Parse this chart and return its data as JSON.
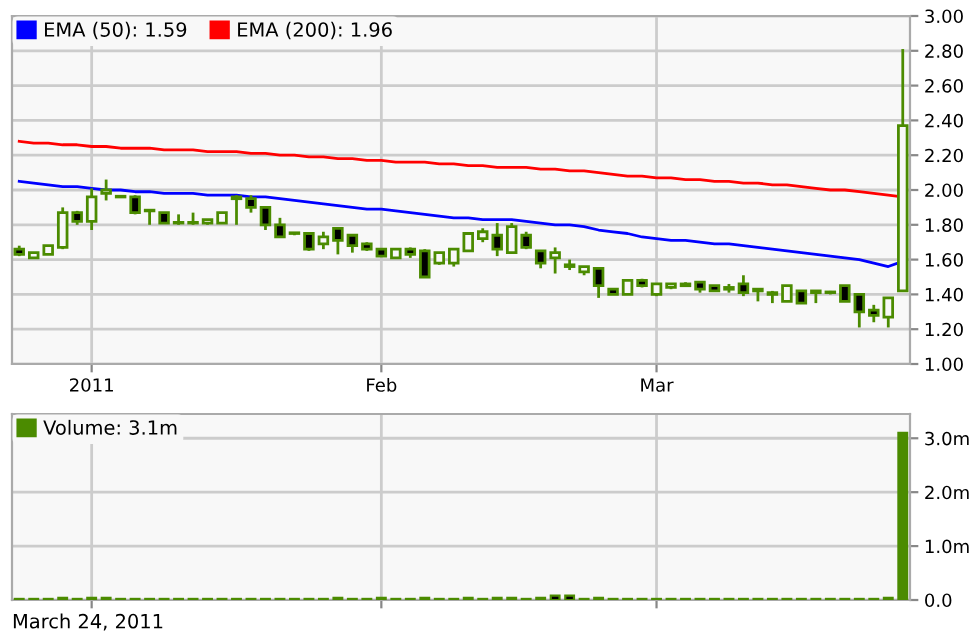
{
  "chart_data": [
    {
      "type": "candlestick",
      "categories": [
        null,
        null,
        null,
        null,
        null,
        "2011",
        null,
        null,
        null,
        null,
        null,
        null,
        null,
        null,
        null,
        null,
        null,
        null,
        null,
        null,
        null,
        null,
        null,
        null,
        null,
        "Feb",
        null,
        null,
        null,
        null,
        null,
        null,
        null,
        null,
        null,
        null,
        null,
        null,
        null,
        null,
        null,
        null,
        null,
        null,
        "Mar",
        null,
        null,
        null,
        null,
        null,
        null,
        null,
        null,
        null,
        null,
        null,
        null,
        null,
        null,
        null,
        null,
        null
      ],
      "color": "#4b8b00",
      "ohlc": [
        [
          1.66,
          1.68,
          1.62,
          1.63
        ],
        [
          1.61,
          1.64,
          1.61,
          1.64
        ],
        [
          1.63,
          1.68,
          1.63,
          1.68
        ],
        [
          1.67,
          1.9,
          1.66,
          1.87
        ],
        [
          1.87,
          1.88,
          1.8,
          1.82
        ],
        [
          1.82,
          2.01,
          1.77,
          1.96
        ],
        [
          1.98,
          2.06,
          1.94,
          2.0
        ],
        [
          1.96,
          1.97,
          1.96,
          1.96
        ],
        [
          1.96,
          1.97,
          1.86,
          1.87
        ],
        [
          1.88,
          1.89,
          1.8,
          1.88
        ],
        [
          1.87,
          1.87,
          1.81,
          1.81
        ],
        [
          1.81,
          1.86,
          1.8,
          1.81
        ],
        [
          1.81,
          1.87,
          1.8,
          1.81
        ],
        [
          1.81,
          1.83,
          1.8,
          1.83
        ],
        [
          1.81,
          1.87,
          1.81,
          1.87
        ],
        [
          1.95,
          1.97,
          1.8,
          1.96
        ],
        [
          1.95,
          1.97,
          1.87,
          1.9
        ],
        [
          1.9,
          1.9,
          1.77,
          1.8
        ],
        [
          1.8,
          1.84,
          1.73,
          1.73
        ],
        [
          1.75,
          1.75,
          1.74,
          1.75
        ],
        [
          1.75,
          1.75,
          1.65,
          1.66
        ],
        [
          1.69,
          1.76,
          1.66,
          1.73
        ],
        [
          1.78,
          1.78,
          1.63,
          1.71
        ],
        [
          1.74,
          1.74,
          1.64,
          1.68
        ],
        [
          1.69,
          1.7,
          1.65,
          1.66
        ],
        [
          1.66,
          1.66,
          1.62,
          1.62
        ],
        [
          1.61,
          1.66,
          1.61,
          1.66
        ],
        [
          1.66,
          1.67,
          1.61,
          1.63
        ],
        [
          1.65,
          1.66,
          1.5,
          1.5
        ],
        [
          1.58,
          1.64,
          1.57,
          1.64
        ],
        [
          1.58,
          1.66,
          1.56,
          1.66
        ],
        [
          1.65,
          1.75,
          1.65,
          1.75
        ],
        [
          1.72,
          1.78,
          1.7,
          1.76
        ],
        [
          1.74,
          1.81,
          1.62,
          1.66
        ],
        [
          1.64,
          1.81,
          1.64,
          1.79
        ],
        [
          1.74,
          1.76,
          1.66,
          1.67
        ],
        [
          1.65,
          1.65,
          1.55,
          1.58
        ],
        [
          1.61,
          1.67,
          1.52,
          1.64
        ],
        [
          1.57,
          1.6,
          1.54,
          1.56
        ],
        [
          1.53,
          1.56,
          1.51,
          1.56
        ],
        [
          1.55,
          1.55,
          1.38,
          1.45
        ],
        [
          1.43,
          1.43,
          1.4,
          1.4
        ],
        [
          1.4,
          1.48,
          1.4,
          1.48
        ],
        [
          1.48,
          1.49,
          1.44,
          1.45
        ],
        [
          1.4,
          1.46,
          1.39,
          1.46
        ],
        [
          1.44,
          1.46,
          1.43,
          1.46
        ],
        [
          1.45,
          1.47,
          1.45,
          1.46
        ],
        [
          1.47,
          1.47,
          1.41,
          1.43
        ],
        [
          1.45,
          1.45,
          1.42,
          1.42
        ],
        [
          1.44,
          1.46,
          1.41,
          1.43
        ],
        [
          1.46,
          1.51,
          1.39,
          1.41
        ],
        [
          1.43,
          1.43,
          1.36,
          1.42
        ],
        [
          1.41,
          1.42,
          1.35,
          1.4
        ],
        [
          1.36,
          1.45,
          1.36,
          1.45
        ],
        [
          1.42,
          1.42,
          1.35,
          1.35
        ],
        [
          1.42,
          1.42,
          1.35,
          1.41
        ],
        [
          1.41,
          1.42,
          1.4,
          1.41
        ],
        [
          1.45,
          1.45,
          1.36,
          1.36
        ],
        [
          1.4,
          1.4,
          1.21,
          1.3
        ],
        [
          1.31,
          1.34,
          1.24,
          1.28
        ],
        [
          1.27,
          1.38,
          1.21,
          1.38
        ],
        [
          1.42,
          2.81,
          1.42,
          2.37
        ]
      ],
      "series": [
        {
          "name": "EMA (50): 1.59",
          "type": "line",
          "color": "#0000ff",
          "values": [
            2.05,
            2.04,
            2.03,
            2.02,
            2.02,
            2.01,
            2.0,
            2.0,
            1.99,
            1.99,
            1.98,
            1.98,
            1.98,
            1.97,
            1.97,
            1.97,
            1.96,
            1.96,
            1.95,
            1.94,
            1.93,
            1.92,
            1.91,
            1.9,
            1.89,
            1.89,
            1.88,
            1.87,
            1.86,
            1.85,
            1.84,
            1.84,
            1.83,
            1.83,
            1.83,
            1.82,
            1.81,
            1.8,
            1.8,
            1.79,
            1.77,
            1.76,
            1.75,
            1.73,
            1.72,
            1.71,
            1.71,
            1.7,
            1.69,
            1.69,
            1.68,
            1.67,
            1.66,
            1.65,
            1.64,
            1.63,
            1.62,
            1.61,
            1.6,
            1.58,
            1.56,
            1.59
          ]
        },
        {
          "name": "EMA (200): 1.96",
          "type": "line",
          "color": "#ff0000",
          "values": [
            2.28,
            2.27,
            2.27,
            2.26,
            2.26,
            2.25,
            2.25,
            2.24,
            2.24,
            2.24,
            2.23,
            2.23,
            2.23,
            2.22,
            2.22,
            2.22,
            2.21,
            2.21,
            2.2,
            2.2,
            2.19,
            2.19,
            2.18,
            2.18,
            2.17,
            2.17,
            2.16,
            2.16,
            2.16,
            2.15,
            2.15,
            2.14,
            2.14,
            2.13,
            2.13,
            2.13,
            2.12,
            2.12,
            2.11,
            2.11,
            2.1,
            2.09,
            2.08,
            2.08,
            2.07,
            2.07,
            2.06,
            2.06,
            2.05,
            2.05,
            2.04,
            2.04,
            2.03,
            2.03,
            2.02,
            2.01,
            2.0,
            2.0,
            1.99,
            1.98,
            1.97,
            1.96
          ]
        }
      ],
      "ylim": [
        1.0,
        3.0
      ],
      "yticks": [
        {
          "value": 1.0,
          "label": "1.00"
        },
        {
          "value": 1.2,
          "label": "1.20"
        },
        {
          "value": 1.4,
          "label": "1.40"
        },
        {
          "value": 1.6,
          "label": "1.60"
        },
        {
          "value": 1.8,
          "label": "1.80"
        },
        {
          "value": 2.0,
          "label": "2.00"
        },
        {
          "value": 2.2,
          "label": "2.20"
        },
        {
          "value": 2.4,
          "label": "2.40"
        },
        {
          "value": 2.6,
          "label": "2.60"
        },
        {
          "value": 2.8,
          "label": "2.80"
        },
        {
          "value": 3.0,
          "label": "3.00"
        }
      ],
      "grid": true,
      "legend": "top left"
    },
    {
      "type": "bar",
      "categories": [
        null,
        null,
        null,
        null,
        null,
        null,
        null,
        null,
        null,
        null,
        null,
        null,
        null,
        null,
        null,
        null,
        null,
        null,
        null,
        null,
        null,
        null,
        null,
        null,
        null,
        null,
        null,
        null,
        null,
        null,
        null,
        null,
        null,
        null,
        null,
        null,
        null,
        null,
        null,
        null,
        null,
        null,
        null,
        null,
        null,
        null,
        null,
        null,
        null,
        null,
        null,
        null,
        null,
        null,
        null,
        null,
        null,
        null,
        null,
        null,
        null,
        null
      ],
      "series": [
        {
          "name": "Volume: 3.1m",
          "color": "#4b8b00",
          "values": [
            0.02,
            0.02,
            0.02,
            0.04,
            0.02,
            0.04,
            0.04,
            0.02,
            0.02,
            0.02,
            0.02,
            0.02,
            0.02,
            0.02,
            0.02,
            0.02,
            0.02,
            0.02,
            0.02,
            0.02,
            0.02,
            0.02,
            0.04,
            0.02,
            0.02,
            0.04,
            0.02,
            0.02,
            0.04,
            0.02,
            0.02,
            0.04,
            0.02,
            0.04,
            0.04,
            0.02,
            0.04,
            0.08,
            0.08,
            0.02,
            0.04,
            0.02,
            0.02,
            0.02,
            0.02,
            0.02,
            0.02,
            0.02,
            0.02,
            0.02,
            0.02,
            0.02,
            0.02,
            0.02,
            0.02,
            0.02,
            0.02,
            0.02,
            0.02,
            0.02,
            0.04,
            3.1
          ]
        }
      ],
      "colors": [
        "#4b8b00",
        "#4b8b00",
        "#4b8b00",
        "#000000",
        "#4b8b00",
        "#000000",
        "#000000",
        "#4b8b00",
        "#4b8b00",
        "#4b8b00",
        "#4b8b00",
        "#4b8b00",
        "#4b8b00",
        "#4b8b00",
        "#4b8b00",
        "#4b8b00",
        "#4b8b00",
        "#4b8b00",
        "#4b8b00",
        "#4b8b00",
        "#4b8b00",
        "#4b8b00",
        "#000000",
        "#4b8b00",
        "#4b8b00",
        "#000000",
        "#4b8b00",
        "#4b8b00",
        "#000000",
        "#4b8b00",
        "#4b8b00",
        "#000000",
        "#4b8b00",
        "#000000",
        "#000000",
        "#4b8b00",
        "#000000",
        "#000000",
        "#000000",
        "#4b8b00",
        "#000000",
        "#4b8b00",
        "#4b8b00",
        "#4b8b00",
        "#4b8b00",
        "#4b8b00",
        "#4b8b00",
        "#4b8b00",
        "#4b8b00",
        "#4b8b00",
        "#4b8b00",
        "#4b8b00",
        "#4b8b00",
        "#4b8b00",
        "#4b8b00",
        "#4b8b00",
        "#4b8b00",
        "#4b8b00",
        "#4b8b00",
        "#4b8b00",
        "#000000",
        "#4b8b00"
      ],
      "ylim": [
        0,
        3.45
      ],
      "yticks": [
        {
          "value": 0,
          "label": "0.0"
        },
        {
          "value": 1,
          "label": "1.0m"
        },
        {
          "value": 2,
          "label": "2.0m"
        },
        {
          "value": 3,
          "label": "3.0m"
        }
      ],
      "tick_labels": "y",
      "grid": true,
      "legend": "top left",
      "annotations": [
        "March 24, 2011"
      ]
    }
  ]
}
